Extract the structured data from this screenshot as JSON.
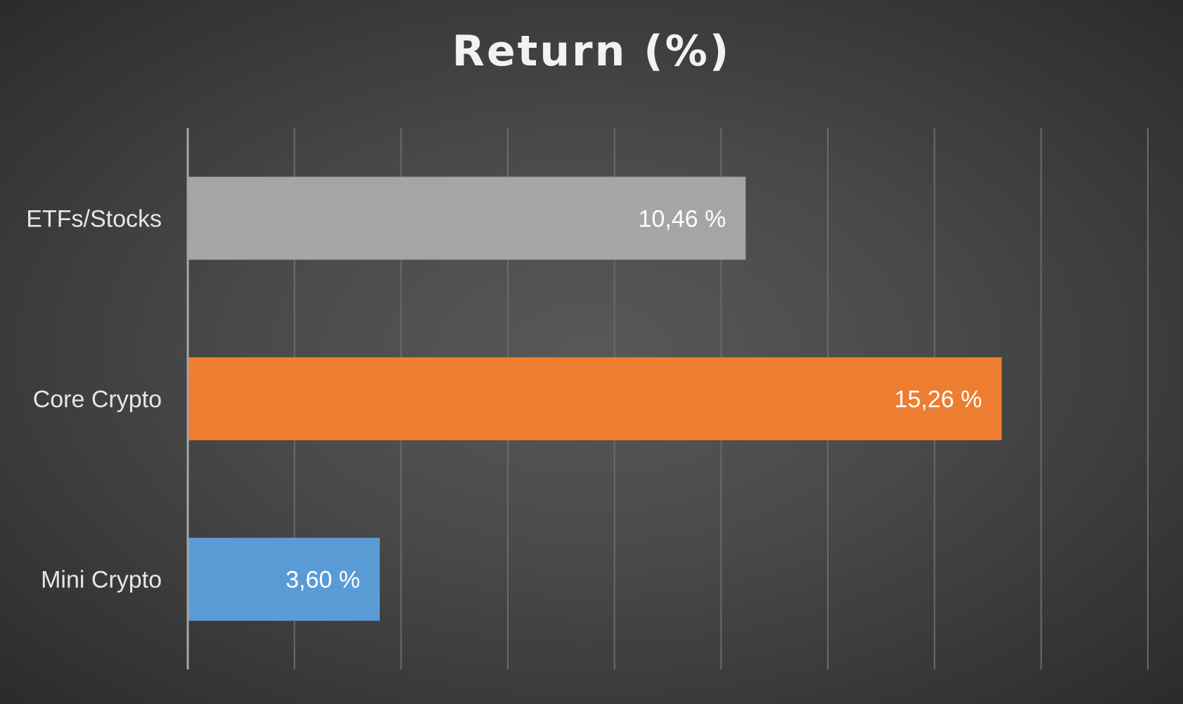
{
  "chart_data": {
    "type": "bar",
    "orientation": "horizontal",
    "title": "Return (%)",
    "categories": [
      "ETFs/Stocks",
      "Core Crypto",
      "Mini Crypto"
    ],
    "values": [
      10.46,
      15.26,
      3.6
    ],
    "data_labels": [
      "10,46 %",
      "15,26 %",
      "3,60 %"
    ],
    "colors": [
      "#a5a5a5",
      "#ed7d31",
      "#5b9bd5"
    ],
    "xlim": [
      0,
      18
    ],
    "grid": true,
    "value_axis_tick_labels_shown": false,
    "legend": "none"
  },
  "colors": {
    "background": "#4a4a4a",
    "gridline": "#6a6a6a",
    "axis_line": "#a6a6a6",
    "title": "#f2f2f2",
    "category_text": "#e6e6e6",
    "data_label_text": "#ffffff"
  }
}
